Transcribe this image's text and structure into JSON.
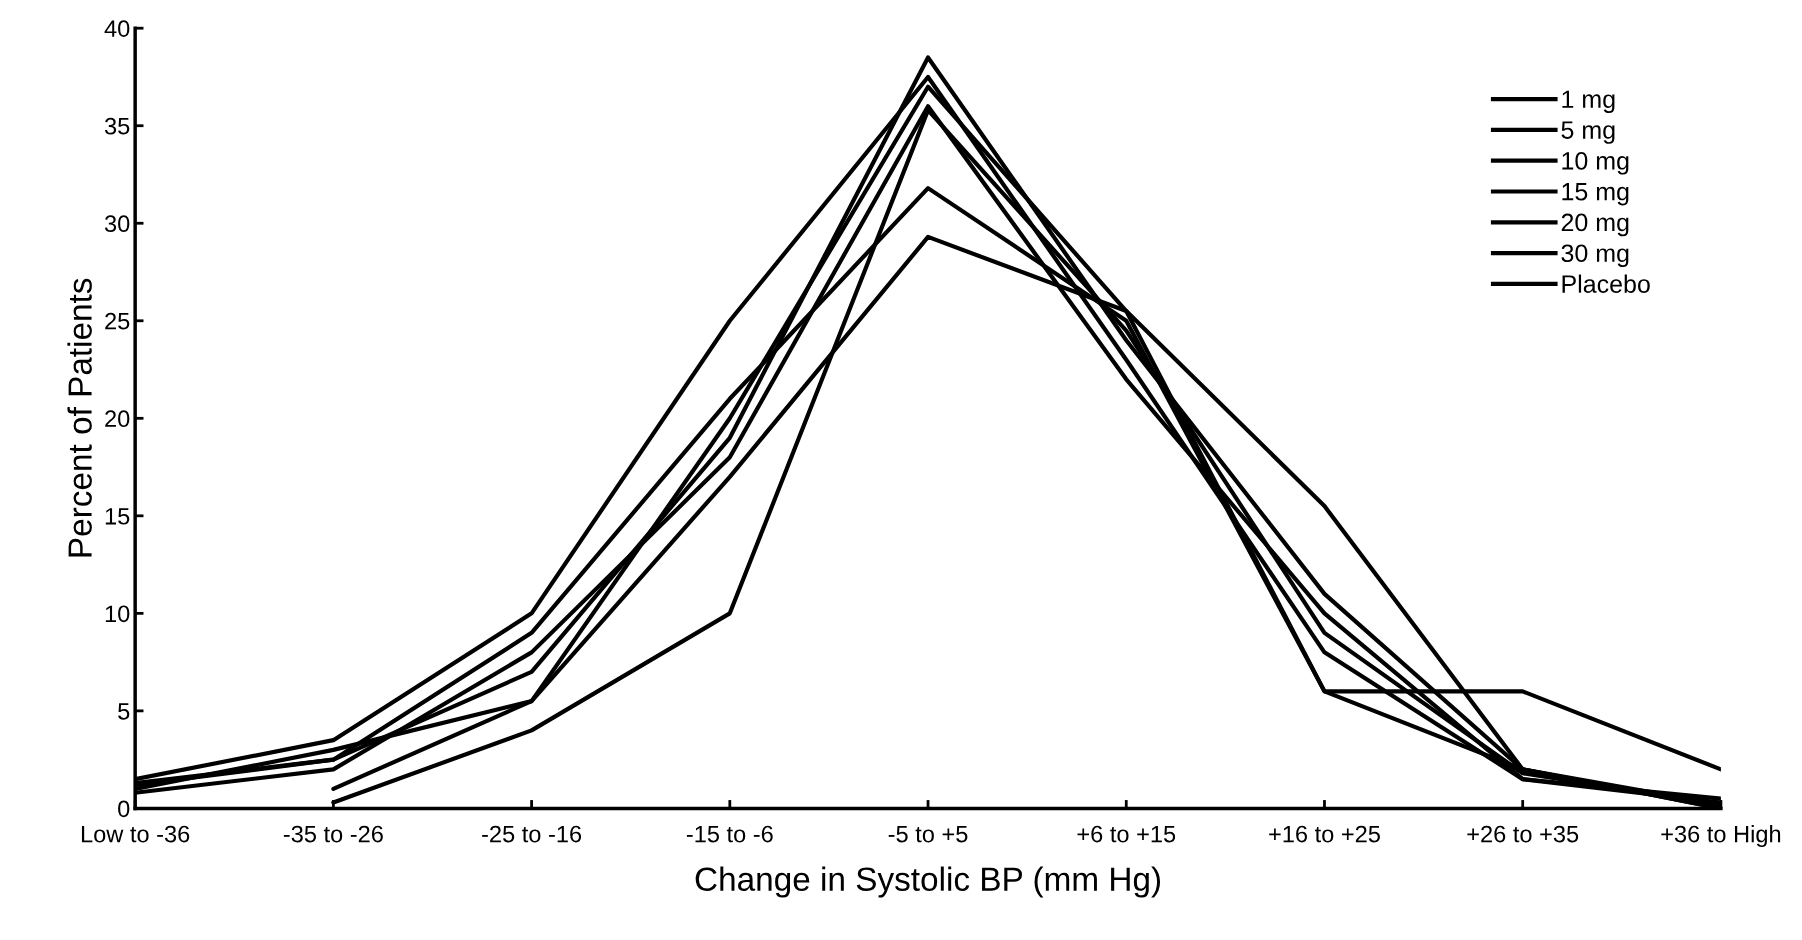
{
  "chart_data": {
    "type": "line",
    "xlabel": "Change in Systolic BP (mm Hg)",
    "ylabel": "Percent of Patients",
    "categories": [
      "Low to -36",
      "-35 to -26",
      "-25 to -16",
      "-15 to -6",
      "-5 to +5",
      "+6 to +15",
      "+16 to +25",
      "+26 to +35",
      "+36 to High"
    ],
    "series": [
      {
        "name": "1 mg",
        "color": "#000000",
        "values": [
          1.2,
          2.5,
          7,
          19,
          38.5,
          24,
          11,
          2,
          0.2
        ]
      },
      {
        "name": "5 mg",
        "color": "#000000",
        "values": [
          1.5,
          3.5,
          10,
          25,
          37.5,
          23,
          8,
          1.5,
          0.3
        ]
      },
      {
        "name": "10 mg",
        "color": "#000000",
        "values": [
          null,
          1,
          5.5,
          20,
          37,
          25.5,
          15.5,
          2,
          0
        ]
      },
      {
        "name": "15 mg",
        "color": "#000000",
        "values": [
          0.8,
          2,
          8,
          18,
          36,
          22,
          10,
          1.5,
          0.5
        ]
      },
      {
        "name": "20 mg",
        "color": "#000000",
        "values": [
          null,
          0.3,
          4,
          10,
          35.8,
          24.5,
          9,
          1.8,
          0.2
        ]
      },
      {
        "name": "30 mg",
        "color": "#000000",
        "values": [
          1,
          3,
          5.5,
          17,
          29.3,
          25.5,
          6,
          6,
          2
        ]
      },
      {
        "name": "Placebo",
        "color": "#000000",
        "values": [
          1.3,
          2.5,
          9,
          21,
          31.8,
          25,
          6,
          2,
          0
        ]
      }
    ],
    "ylim": [
      0,
      40
    ],
    "yticks": [
      0,
      5,
      10,
      15,
      20,
      25,
      30,
      35,
      40
    ],
    "grid": false,
    "legend": "top right",
    "marker": "none",
    "line_style": "solid"
  }
}
